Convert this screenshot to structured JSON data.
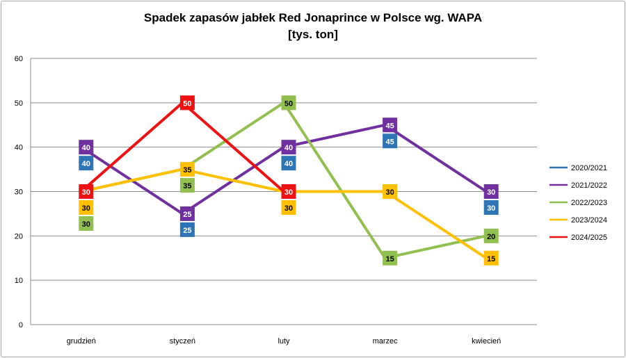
{
  "chart_data": {
    "type": "line",
    "title_line1": "Spadek zapasów  jabłek Red Jonaprince  w Polsce wg. WAPA",
    "title_line2": "[tys. ton]",
    "categories": [
      "grudzień",
      "styczeń",
      "luty",
      "marzec",
      "kwiecień"
    ],
    "ylim": [
      0,
      60
    ],
    "yticks": [
      0,
      10,
      20,
      30,
      40,
      50,
      60
    ],
    "grid": true,
    "legend_position": "right",
    "series": [
      {
        "name": "2020/2021",
        "color": "#2e75b6",
        "label_text_color": "#ffffff",
        "values": [
          40,
          25,
          40,
          45,
          30
        ],
        "visible_line": false
      },
      {
        "name": "2021/2022",
        "color": "#7030a0",
        "label_text_color": "#ffffff",
        "values": [
          40,
          25,
          40,
          45,
          30
        ],
        "visible_line": true
      },
      {
        "name": "2022/2023",
        "color": "#92c050",
        "label_text_color": "#000000",
        "values": [
          30,
          35,
          50,
          15,
          20
        ],
        "visible_line": true
      },
      {
        "name": "2023/2024",
        "color": "#ffc000",
        "label_text_color": "#000000",
        "values": [
          30,
          35,
          30,
          30,
          15
        ],
        "visible_line": true
      },
      {
        "name": "2024/2025",
        "color": "#ee1111",
        "label_text_color": "#ffffff",
        "values": [
          30,
          50,
          30,
          null,
          null
        ],
        "visible_line": true
      }
    ]
  }
}
